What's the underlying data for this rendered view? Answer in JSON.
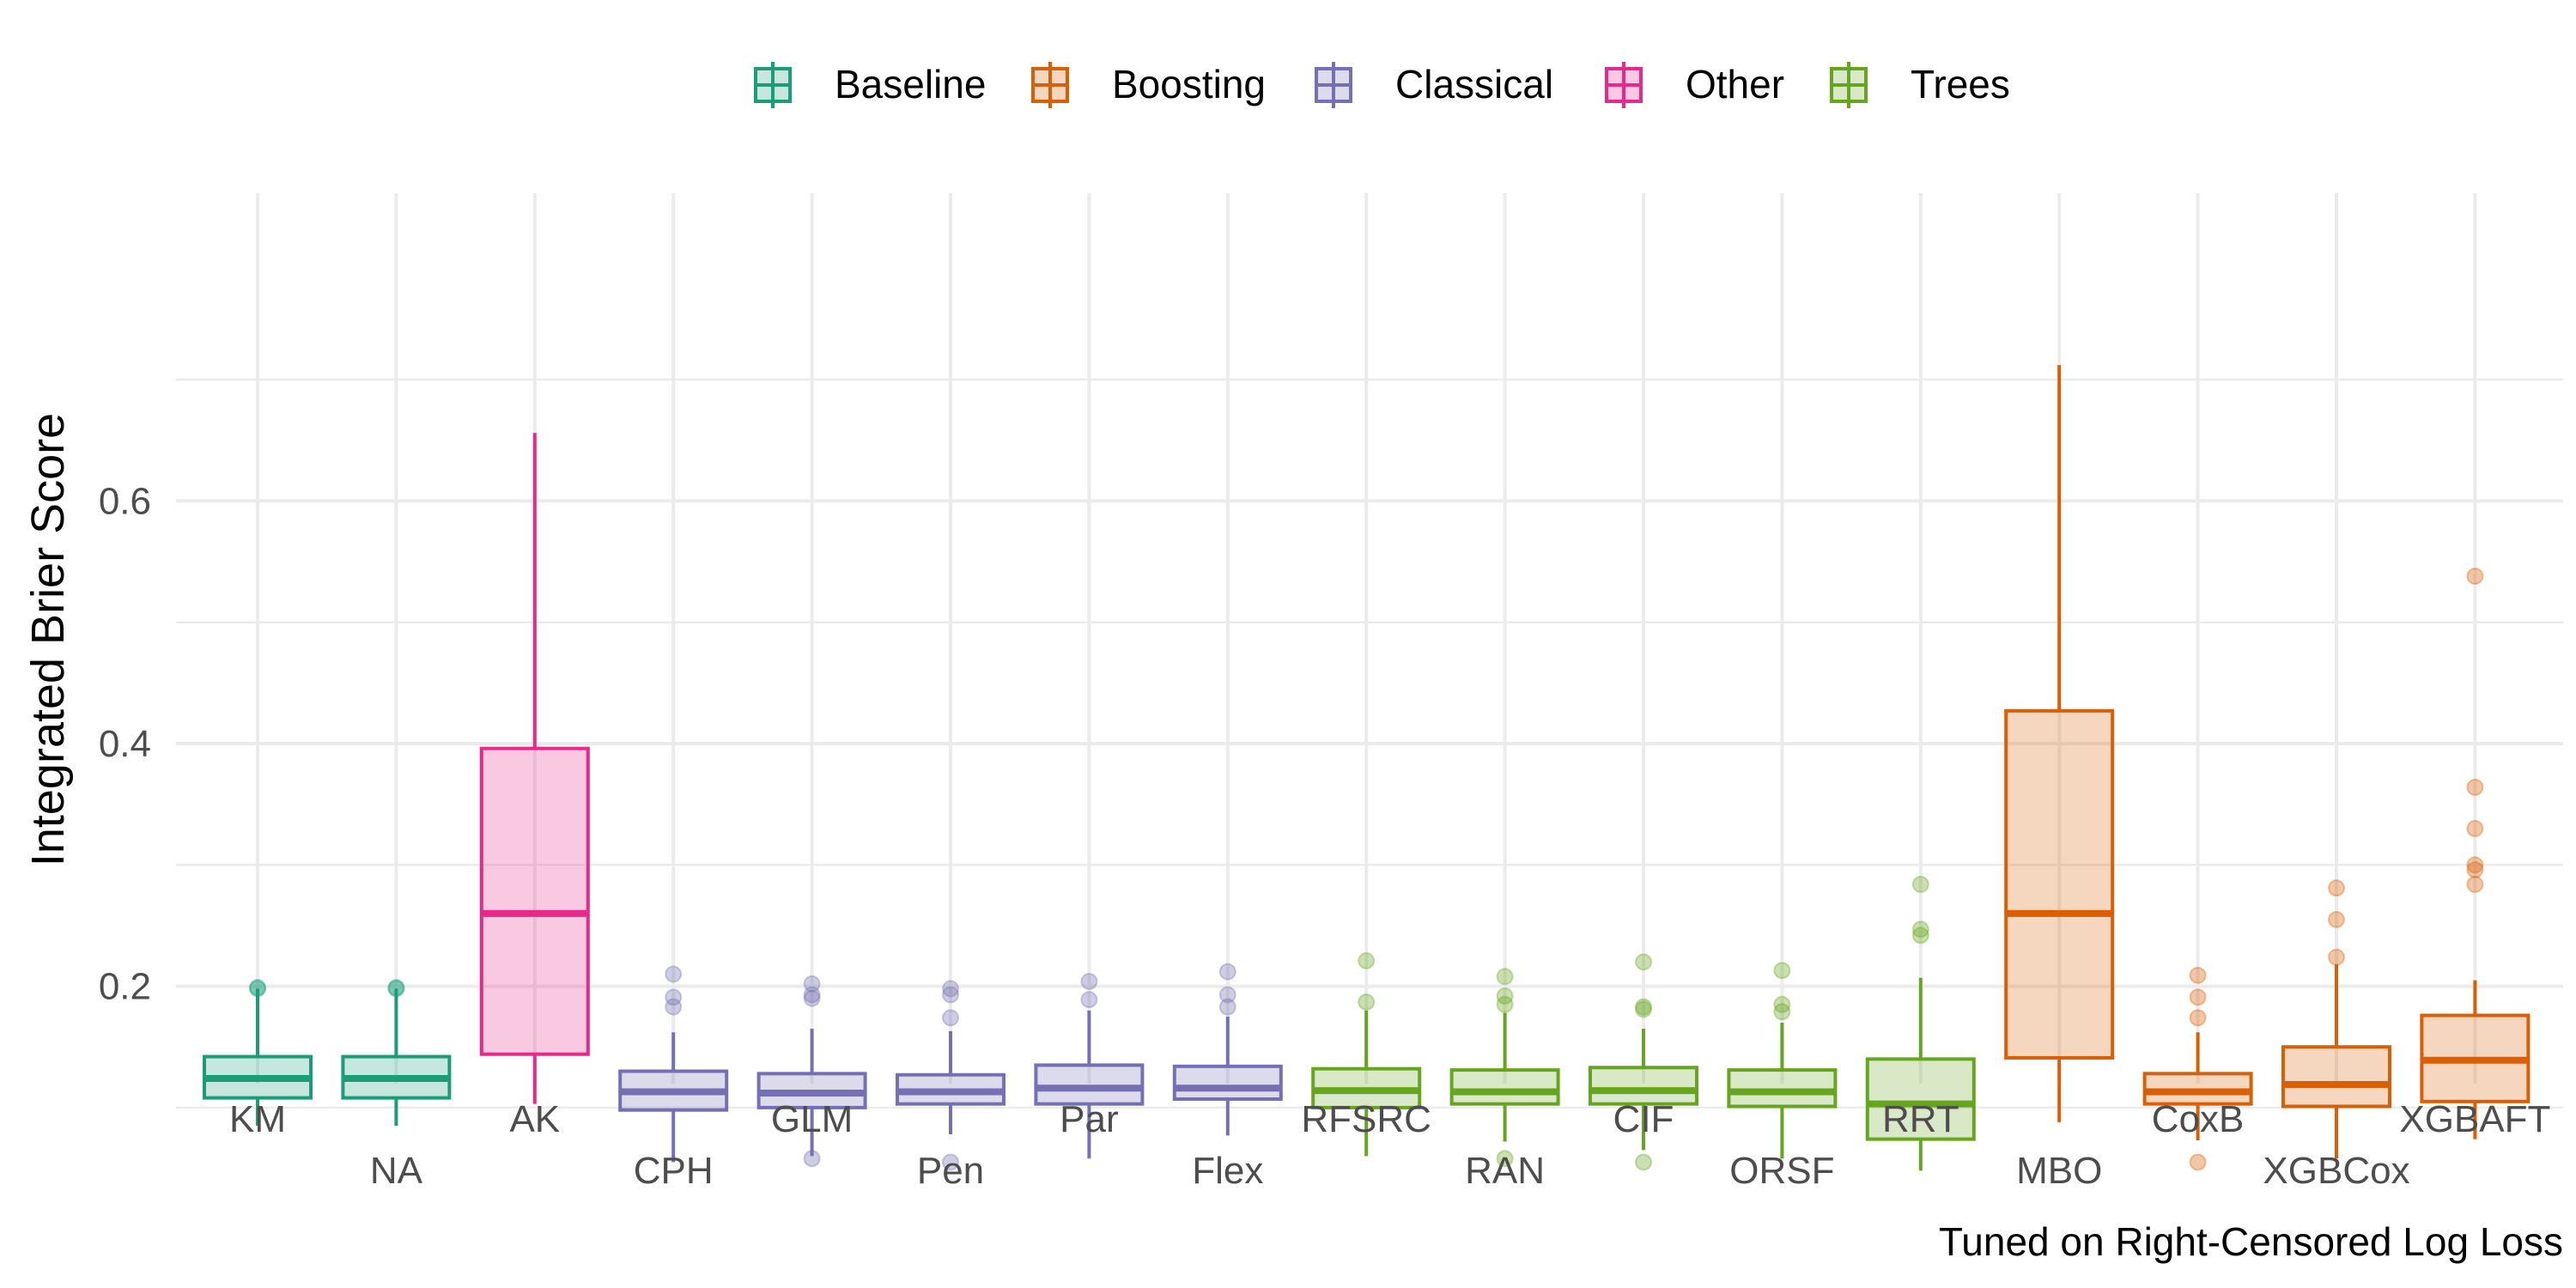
{
  "chart_data": {
    "type": "boxplot",
    "ylabel": "Integrated Brier Score",
    "caption": "Tuned on Right-Censored Log Loss",
    "y_ticks": [
      0.2,
      0.4,
      0.6
    ],
    "y_tick_labels": [
      "0.2",
      "0.4",
      "0.6"
    ],
    "ylim": [
      0.03,
      0.74
    ],
    "grid": true,
    "legend_position": "top",
    "groups": [
      {
        "name": "Baseline",
        "color": "#1B9E77"
      },
      {
        "name": "Boosting",
        "color": "#D95F02"
      },
      {
        "name": "Classical",
        "color": "#7570B3"
      },
      {
        "name": "Other",
        "color": "#E7298A"
      },
      {
        "name": "Trees",
        "color": "#66A61E"
      }
    ],
    "boxes": [
      {
        "category": "KM",
        "group": "Baseline",
        "whisker_low": 0.085,
        "q1": 0.108,
        "median": 0.124,
        "q3": 0.142,
        "whisker_high": 0.198,
        "outliers": [
          0.198,
          0.199
        ]
      },
      {
        "category": "NA",
        "group": "Baseline",
        "whisker_low": 0.085,
        "q1": 0.108,
        "median": 0.124,
        "q3": 0.142,
        "whisker_high": 0.198,
        "outliers": [
          0.198,
          0.199
        ]
      },
      {
        "category": "AK",
        "group": "Other",
        "whisker_low": 0.103,
        "q1": 0.144,
        "median": 0.26,
        "q3": 0.396,
        "whisker_high": 0.656,
        "outliers": []
      },
      {
        "category": "CPH",
        "group": "Classical",
        "whisker_low": 0.055,
        "q1": 0.098,
        "median": 0.113,
        "q3": 0.13,
        "whisker_high": 0.162,
        "outliers": [
          0.183,
          0.191,
          0.21
        ]
      },
      {
        "category": "GLM",
        "group": "Classical",
        "whisker_low": 0.06,
        "q1": 0.1,
        "median": 0.112,
        "q3": 0.128,
        "whisker_high": 0.165,
        "outliers": [
          0.058,
          0.19,
          0.193,
          0.202
        ]
      },
      {
        "category": "Pen",
        "group": "Classical",
        "whisker_low": 0.078,
        "q1": 0.103,
        "median": 0.113,
        "q3": 0.127,
        "whisker_high": 0.163,
        "outliers": [
          0.055,
          0.174,
          0.193,
          0.198
        ]
      },
      {
        "category": "Par",
        "group": "Classical",
        "whisker_low": 0.058,
        "q1": 0.103,
        "median": 0.116,
        "q3": 0.135,
        "whisker_high": 0.18,
        "outliers": [
          0.189,
          0.204
        ]
      },
      {
        "category": "Flex",
        "group": "Classical",
        "whisker_low": 0.077,
        "q1": 0.107,
        "median": 0.116,
        "q3": 0.134,
        "whisker_high": 0.175,
        "outliers": [
          0.183,
          0.193,
          0.212
        ]
      },
      {
        "category": "RFSRC",
        "group": "Trees",
        "whisker_low": 0.06,
        "q1": 0.1,
        "median": 0.114,
        "q3": 0.132,
        "whisker_high": 0.18,
        "outliers": [
          0.187,
          0.221
        ]
      },
      {
        "category": "RAN",
        "group": "Trees",
        "whisker_low": 0.072,
        "q1": 0.103,
        "median": 0.113,
        "q3": 0.131,
        "whisker_high": 0.178,
        "outliers": [
          0.058,
          0.185,
          0.192,
          0.208
        ]
      },
      {
        "category": "CIF",
        "group": "Trees",
        "whisker_low": 0.065,
        "q1": 0.103,
        "median": 0.114,
        "q3": 0.133,
        "whisker_high": 0.165,
        "outliers": [
          0.055,
          0.181,
          0.183,
          0.22
        ]
      },
      {
        "category": "ORSF",
        "group": "Trees",
        "whisker_low": 0.058,
        "q1": 0.101,
        "median": 0.113,
        "q3": 0.131,
        "whisker_high": 0.17,
        "outliers": [
          0.179,
          0.185,
          0.213
        ]
      },
      {
        "category": "RRT",
        "group": "Trees",
        "whisker_low": 0.048,
        "q1": 0.074,
        "median": 0.103,
        "q3": 0.14,
        "whisker_high": 0.207,
        "outliers": [
          0.242,
          0.247,
          0.284
        ]
      },
      {
        "category": "MBO",
        "group": "Boosting",
        "whisker_low": 0.088,
        "q1": 0.141,
        "median": 0.26,
        "q3": 0.427,
        "whisker_high": 0.712,
        "outliers": []
      },
      {
        "category": "CoxB",
        "group": "Boosting",
        "whisker_low": 0.073,
        "q1": 0.103,
        "median": 0.113,
        "q3": 0.128,
        "whisker_high": 0.162,
        "outliers": [
          0.055,
          0.174,
          0.191,
          0.209
        ]
      },
      {
        "category": "XGBCox",
        "group": "Boosting",
        "whisker_low": 0.058,
        "q1": 0.101,
        "median": 0.119,
        "q3": 0.15,
        "whisker_high": 0.218,
        "outliers": [
          0.224,
          0.255,
          0.281
        ]
      },
      {
        "category": "XGBAFT",
        "group": "Boosting",
        "whisker_low": 0.074,
        "q1": 0.105,
        "median": 0.139,
        "q3": 0.176,
        "whisker_high": 0.205,
        "outliers": [
          0.284,
          0.296,
          0.3,
          0.33,
          0.364,
          0.538
        ]
      }
    ]
  }
}
